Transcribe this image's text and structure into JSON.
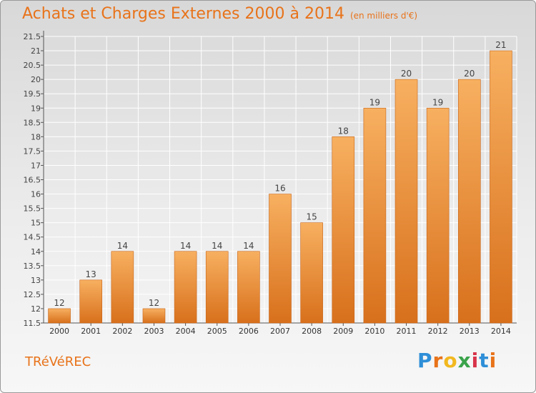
{
  "header": {
    "title": "Achats et Charges Externes 2000 à 2014",
    "subtitle": "(en milliers d'€)"
  },
  "footer": {
    "commune": "TRéVéREC",
    "logo": "Proxiti"
  },
  "colors": {
    "bar": "#f08c2a",
    "bar_light": "#f7b060",
    "bar_dark": "#d8701c",
    "title": "#e8731a",
    "grid": "#ffffff",
    "axis": "#555555"
  },
  "chart_data": {
    "type": "bar",
    "categories": [
      "2000",
      "2001",
      "2002",
      "2003",
      "2004",
      "2005",
      "2006",
      "2007",
      "2008",
      "2009",
      "2010",
      "2011",
      "2012",
      "2013",
      "2014"
    ],
    "values": [
      12,
      13,
      14,
      12,
      14,
      14,
      14,
      16,
      15,
      18,
      19,
      20,
      19,
      20,
      21
    ],
    "data_labels": [
      "12",
      "13",
      "14",
      "12",
      "14",
      "14",
      "14",
      "16",
      "15",
      "18",
      "19",
      "20",
      "19",
      "20",
      "21"
    ],
    "title": "Achats et Charges Externes 2000 à 2014",
    "subtitle": "(en milliers d'€)",
    "ylim": [
      11.5,
      21.5
    ],
    "yticks": [
      11.5,
      12,
      12.5,
      13,
      13.5,
      14,
      14.5,
      15,
      15.5,
      16,
      16.5,
      17,
      17.5,
      18,
      18.5,
      19,
      19.5,
      20,
      20.5,
      21,
      21.5
    ],
    "ytick_labels": [
      "11.5",
      "12",
      "12.5",
      "13",
      "13.5",
      "14",
      "14.5",
      "15",
      "15.5",
      "16",
      "16.5",
      "17",
      "17.5",
      "18",
      "18.5",
      "19",
      "19.5",
      "20",
      "20.5",
      "21",
      "21.5"
    ],
    "grid": true
  }
}
